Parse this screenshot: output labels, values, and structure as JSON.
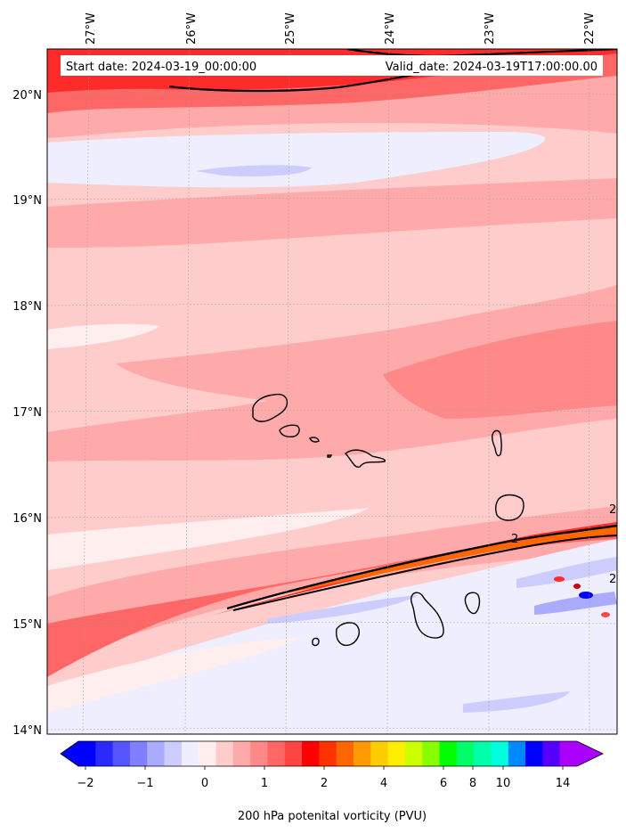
{
  "header": {
    "start_date": "Start date: 2024-03-19_00:00:00",
    "valid_date": "Valid_date: 2024-03-19T17:00:00.00"
  },
  "map": {
    "projection": "lambert-conformal",
    "lon_ticks": [
      "27°W",
      "26°W",
      "25°W",
      "24°W",
      "23°W",
      "22°W"
    ],
    "lat_ticks": [
      "20°N",
      "19°N",
      "18°N",
      "17°N",
      "16°N",
      "15°N",
      "14°N"
    ],
    "gridlines": true,
    "contour_label": "2",
    "islands": [
      "Santo Antão",
      "São Vicente",
      "Santa Luzia",
      "São Nicolau",
      "Sal",
      "Boa Vista",
      "Maio",
      "Santiago",
      "Fogo",
      "Brava"
    ]
  },
  "colorbar": {
    "label": "200 hPa potenital vorticity (PVU)",
    "ticks": [
      "−2",
      "−1",
      "0",
      "1",
      "2",
      "4",
      "6",
      "8",
      "10",
      "14"
    ],
    "colors": [
      "#0000ff",
      "#2a2aff",
      "#5555ff",
      "#7f7fff",
      "#aaaaff",
      "#ccccff",
      "#eeeeff",
      "#ffeeee",
      "#ffcccc",
      "#ffaaaa",
      "#ff8888",
      "#ff6666",
      "#ff4444",
      "#ff0000",
      "#ff3300",
      "#ff6600",
      "#ff9900",
      "#ffcc00",
      "#ffee00",
      "#ccff00",
      "#88ff00",
      "#00ff00",
      "#00ff66",
      "#00ffaa",
      "#00ffdd",
      "#0088ff",
      "#0000ff",
      "#5500ff",
      "#aa00ff"
    ],
    "extend": "both"
  }
}
